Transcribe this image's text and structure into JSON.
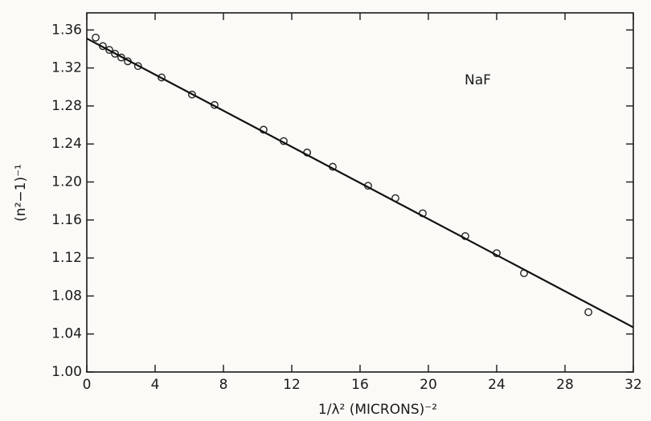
{
  "chart_data": {
    "type": "scatter",
    "annotation": "NaF",
    "xlabel": "1/λ² (MICRONS)⁻²",
    "ylabel": "(n²−1)⁻¹",
    "xlim": [
      0,
      32
    ],
    "ylim": [
      1.0,
      1.378
    ],
    "xticks": [
      0,
      4,
      8,
      12,
      16,
      20,
      24,
      28,
      32
    ],
    "yticks": [
      {
        "value": 1.0,
        "label": "1.00"
      },
      1.04,
      1.08,
      1.12,
      1.16,
      {
        "value": 1.2,
        "label": "1.20"
      },
      1.24,
      1.28,
      1.32,
      1.36
    ],
    "series": [
      {
        "mode": "markers",
        "color": "#222222",
        "x": [
          0.52,
          0.94,
          1.32,
          1.65,
          2.02,
          2.4,
          3.0,
          4.38,
          6.16,
          7.48,
          10.35,
          11.53,
          12.9,
          14.4,
          16.47,
          18.07,
          19.67,
          22.16,
          24.0,
          25.6,
          29.37
        ],
        "values": [
          1.352,
          1.343,
          1.339,
          1.335,
          1.331,
          1.327,
          1.322,
          1.31,
          1.292,
          1.281,
          1.255,
          1.243,
          1.231,
          1.216,
          1.196,
          1.183,
          1.167,
          1.143,
          1.125,
          1.104,
          1.063
        ]
      },
      {
        "mode": "line",
        "color": "#111111",
        "x": [
          0,
          32
        ],
        "values": [
          1.351,
          1.047
        ]
      }
    ]
  }
}
